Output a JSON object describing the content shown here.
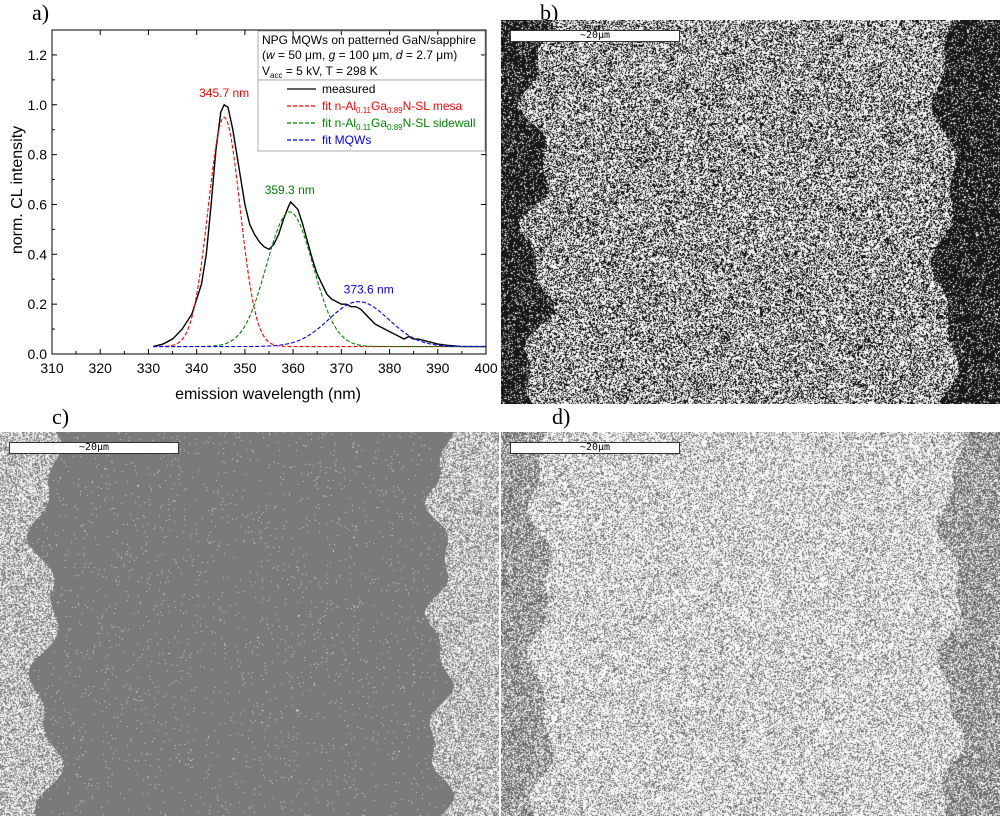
{
  "panels": {
    "a": "a)",
    "b": "b)",
    "c": "c)",
    "d": "d)"
  },
  "scalebar_label": "~20μm",
  "chart_data": {
    "type": "line",
    "xlabel": "emission wavelength (nm)",
    "ylabel": "norm. CL intensity",
    "xlim": [
      310,
      400
    ],
    "ylim": [
      0,
      1.3
    ],
    "x_ticks": [
      310,
      320,
      330,
      340,
      350,
      360,
      370,
      380,
      390,
      400
    ],
    "y_ticks": [
      0.0,
      0.2,
      0.4,
      0.6,
      0.8,
      1.0,
      1.2
    ],
    "info_box": {
      "line1": "NPG MQWs on patterned GaN/sapphire",
      "line2_parts": [
        "(",
        "w",
        " = 50 μm, ",
        "g",
        " = 100 μm, ",
        "d",
        " = 2.7 μm)"
      ],
      "line3_v": "V",
      "line3_sub": "acc",
      "line3_rest": " = 5 kV, T = 298 K"
    },
    "legend": [
      {
        "pre": "measured",
        "sub1": "",
        "mid": "",
        "sub2": "",
        "post": "",
        "color": "#000000",
        "dash": false
      },
      {
        "pre": "fit n-Al",
        "sub1": "0.11",
        "mid": "Ga",
        "sub2": "0.89",
        "post": "N-SL mesa",
        "color": "#ff0000",
        "dash": true
      },
      {
        "pre": "fit n-Al",
        "sub1": "0.11",
        "mid": "Ga",
        "sub2": "0.89",
        "post": "N-SL sidewall",
        "color": "#008000",
        "dash": true
      },
      {
        "pre": "fit MQWs",
        "sub1": "",
        "mid": "",
        "sub2": "",
        "post": "",
        "color": "#0000ff",
        "dash": true
      }
    ],
    "peak_labels": [
      {
        "text": "345.7 nm",
        "x": 345.7,
        "y": 1.0,
        "color": "#ff0000"
      },
      {
        "text": "359.3 nm",
        "x": 359.3,
        "y": 0.61,
        "color": "#008000"
      },
      {
        "text": "373.6 nm",
        "x": 373.6,
        "y": 0.21,
        "color": "#0000ff"
      }
    ],
    "series": [
      {
        "name": "measured",
        "color": "#000000",
        "x": [
          331,
          333,
          335,
          337,
          339,
          341,
          342,
          343,
          344,
          345,
          345.7,
          346.5,
          347.5,
          349,
          350,
          351,
          352,
          353,
          354,
          355,
          356,
          357,
          358,
          359,
          359.5,
          360,
          361,
          362,
          363,
          364,
          365,
          366,
          367,
          368,
          369,
          370,
          371,
          372,
          373,
          374,
          375,
          376,
          377,
          378,
          379,
          380,
          381,
          382,
          383,
          384,
          385,
          386,
          388,
          390,
          392,
          395,
          400
        ],
        "y": [
          0.03,
          0.04,
          0.06,
          0.1,
          0.16,
          0.28,
          0.4,
          0.6,
          0.82,
          0.97,
          1.0,
          0.99,
          0.9,
          0.72,
          0.6,
          0.52,
          0.48,
          0.45,
          0.43,
          0.42,
          0.44,
          0.48,
          0.54,
          0.59,
          0.61,
          0.6,
          0.58,
          0.52,
          0.45,
          0.38,
          0.32,
          0.28,
          0.24,
          0.22,
          0.21,
          0.2,
          0.2,
          0.19,
          0.19,
          0.18,
          0.16,
          0.14,
          0.12,
          0.11,
          0.1,
          0.09,
          0.08,
          0.07,
          0.06,
          0.07,
          0.06,
          0.06,
          0.05,
          0.04,
          0.035,
          0.03,
          0.03
        ]
      },
      {
        "name": "fit n-Al0.11Ga0.89N-SL mesa",
        "color": "#ff0000",
        "center": 345.7,
        "amplitude": 0.92,
        "sigma": 3.3,
        "offset": 0.03,
        "x_range": [
          331,
          400
        ]
      },
      {
        "name": "fit n-Al0.11Ga0.89N-SL sidewall",
        "color": "#008000",
        "center": 359.3,
        "amplitude": 0.54,
        "sigma": 4.8,
        "offset": 0.03,
        "x_range": [
          331,
          400
        ]
      },
      {
        "name": "fit MQWs",
        "color": "#0000ff",
        "center": 373.6,
        "amplitude": 0.18,
        "sigma": 6.2,
        "offset": 0.03,
        "x_range": [
          331,
          400
        ]
      }
    ]
  },
  "micrographs": {
    "b": {
      "description_colors": {
        "background": "#ffffff",
        "speckle": "#000000"
      }
    },
    "c": {
      "description_colors": {
        "background": "#7f7f7f",
        "speckle": "#ffffff"
      }
    },
    "d": {
      "description_colors": {
        "background": "#ffffff",
        "speckle": "#6e6e6e"
      }
    }
  }
}
